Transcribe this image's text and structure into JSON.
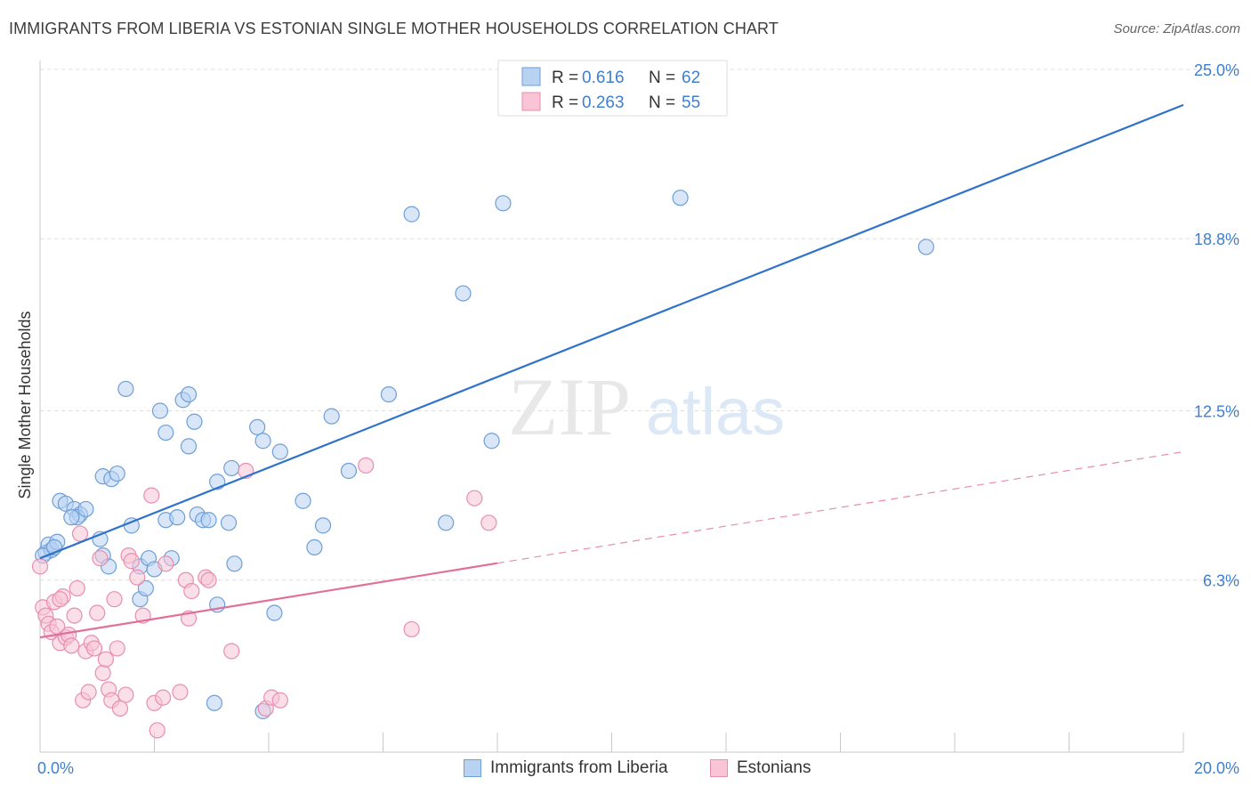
{
  "title": "IMMIGRANTS FROM LIBERIA VS ESTONIAN SINGLE MOTHER HOUSEHOLDS CORRELATION CHART",
  "source": "Source: ZipAtlas.com",
  "watermark": {
    "zip": "ZIP",
    "atlas": "atlas"
  },
  "colors": {
    "blue_fill": "#b8d2f2",
    "blue_stroke": "#6e9fd8",
    "blue_line": "#2f72cc",
    "pink_fill": "#f8c4d6",
    "pink_stroke": "#e88eaf",
    "pink_line": "#e0709a",
    "axis_text": "#3f7fcf",
    "grid": "#dcdcdc"
  },
  "legend_top": {
    "rows": [
      {
        "r_label": "R =",
        "r_value": "0.616",
        "n_label": "N =",
        "n_value": "62"
      },
      {
        "r_label": "R =",
        "r_value": "0.263",
        "n_label": "N =",
        "n_value": "55"
      }
    ]
  },
  "legend_bottom": {
    "items": [
      {
        "label": "Immigrants from Liberia"
      },
      {
        "label": "Estonians"
      }
    ]
  },
  "chart_data": {
    "type": "scatter",
    "ylabel": "Single Mother Households",
    "xlim": [
      0,
      20
    ],
    "ylim": [
      0,
      25
    ],
    "x_tick_labels": [
      {
        "value": 0,
        "label": "0.0%"
      },
      {
        "value": 20,
        "label": "20.0%"
      }
    ],
    "y_tick_labels": [
      {
        "value": 6.3,
        "label": "6.3%"
      },
      {
        "value": 12.5,
        "label": "12.5%"
      },
      {
        "value": 18.8,
        "label": "18.8%"
      },
      {
        "value": 25.0,
        "label": "25.0%"
      }
    ],
    "series": [
      {
        "name": "Immigrants from Liberia",
        "color": "blue",
        "trend": {
          "x": [
            0,
            20
          ],
          "y": [
            7.1,
            23.7
          ],
          "dashed_from": null
        },
        "points": [
          [
            0.1,
            7.3
          ],
          [
            0.15,
            7.6
          ],
          [
            0.2,
            7.4
          ],
          [
            0.3,
            7.7
          ],
          [
            0.35,
            9.2
          ],
          [
            0.45,
            9.1
          ],
          [
            0.6,
            8.9
          ],
          [
            0.7,
            8.7
          ],
          [
            0.65,
            8.6
          ],
          [
            0.8,
            8.9
          ],
          [
            1.1,
            7.2
          ],
          [
            1.05,
            7.8
          ],
          [
            1.2,
            6.8
          ],
          [
            1.1,
            10.1
          ],
          [
            1.25,
            10.0
          ],
          [
            1.35,
            10.2
          ],
          [
            1.6,
            8.3
          ],
          [
            1.5,
            13.3
          ],
          [
            1.75,
            6.8
          ],
          [
            1.75,
            5.6
          ],
          [
            1.85,
            6.0
          ],
          [
            1.9,
            7.1
          ],
          [
            2.0,
            6.7
          ],
          [
            2.1,
            12.5
          ],
          [
            2.2,
            8.5
          ],
          [
            2.2,
            11.7
          ],
          [
            2.3,
            7.1
          ],
          [
            2.4,
            8.6
          ],
          [
            2.5,
            12.9
          ],
          [
            2.6,
            11.2
          ],
          [
            2.6,
            13.1
          ],
          [
            2.7,
            12.1
          ],
          [
            2.75,
            8.7
          ],
          [
            2.85,
            8.5
          ],
          [
            2.95,
            8.5
          ],
          [
            3.05,
            1.8
          ],
          [
            3.1,
            5.4
          ],
          [
            3.1,
            9.9
          ],
          [
            3.3,
            8.4
          ],
          [
            3.35,
            10.4
          ],
          [
            3.4,
            6.9
          ],
          [
            3.8,
            11.9
          ],
          [
            3.9,
            11.4
          ],
          [
            3.9,
            1.5
          ],
          [
            4.1,
            5.1
          ],
          [
            4.2,
            11.0
          ],
          [
            4.6,
            9.2
          ],
          [
            4.8,
            7.5
          ],
          [
            4.95,
            8.3
          ],
          [
            5.1,
            12.3
          ],
          [
            5.4,
            10.3
          ],
          [
            6.1,
            13.1
          ],
          [
            6.5,
            19.7
          ],
          [
            7.1,
            8.4
          ],
          [
            7.4,
            16.8
          ],
          [
            7.9,
            11.4
          ],
          [
            8.1,
            20.1
          ],
          [
            11.2,
            20.3
          ],
          [
            15.5,
            18.5
          ],
          [
            0.05,
            7.2
          ],
          [
            0.25,
            7.5
          ],
          [
            0.55,
            8.6
          ]
        ]
      },
      {
        "name": "Estonians",
        "color": "pink",
        "trend": {
          "x": [
            0,
            20
          ],
          "y": [
            4.2,
            11.0
          ],
          "dashed_from": 8.0
        },
        "points": [
          [
            0.0,
            6.8
          ],
          [
            0.05,
            5.3
          ],
          [
            0.1,
            5.0
          ],
          [
            0.15,
            4.7
          ],
          [
            0.2,
            4.4
          ],
          [
            0.25,
            5.5
          ],
          [
            0.3,
            4.6
          ],
          [
            0.35,
            4.0
          ],
          [
            0.4,
            5.7
          ],
          [
            0.35,
            5.6
          ],
          [
            0.45,
            4.2
          ],
          [
            0.5,
            4.3
          ],
          [
            0.55,
            3.9
          ],
          [
            0.6,
            5.0
          ],
          [
            0.65,
            6.0
          ],
          [
            0.7,
            8.0
          ],
          [
            0.75,
            1.9
          ],
          [
            0.8,
            3.7
          ],
          [
            0.85,
            2.2
          ],
          [
            0.9,
            4.0
          ],
          [
            0.95,
            3.8
          ],
          [
            1.0,
            5.1
          ],
          [
            1.05,
            7.1
          ],
          [
            1.1,
            2.9
          ],
          [
            1.15,
            3.4
          ],
          [
            1.2,
            2.3
          ],
          [
            1.25,
            1.9
          ],
          [
            1.3,
            5.6
          ],
          [
            1.35,
            3.8
          ],
          [
            1.4,
            1.6
          ],
          [
            1.5,
            2.1
          ],
          [
            1.55,
            7.2
          ],
          [
            1.6,
            7.0
          ],
          [
            1.7,
            6.4
          ],
          [
            1.8,
            5.0
          ],
          [
            1.95,
            9.4
          ],
          [
            2.0,
            1.8
          ],
          [
            2.05,
            0.8
          ],
          [
            2.15,
            2.0
          ],
          [
            2.2,
            6.9
          ],
          [
            2.45,
            2.2
          ],
          [
            2.55,
            6.3
          ],
          [
            2.6,
            4.9
          ],
          [
            2.65,
            5.9
          ],
          [
            2.9,
            6.4
          ],
          [
            2.95,
            6.3
          ],
          [
            3.35,
            3.7
          ],
          [
            3.6,
            10.3
          ],
          [
            3.95,
            1.6
          ],
          [
            4.05,
            2.0
          ],
          [
            4.2,
            1.9
          ],
          [
            5.7,
            10.5
          ],
          [
            6.5,
            4.5
          ],
          [
            7.6,
            9.3
          ],
          [
            7.85,
            8.4
          ]
        ]
      }
    ]
  }
}
